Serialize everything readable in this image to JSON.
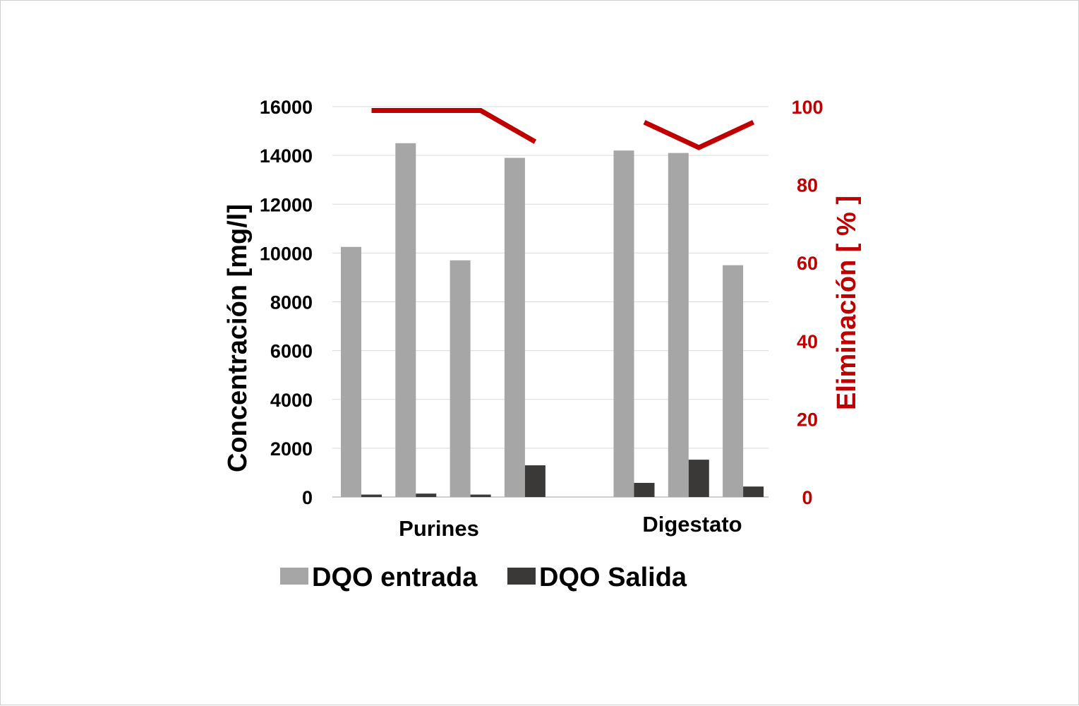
{
  "chart_data": {
    "type": "bar",
    "title": "",
    "groups": [
      "Purines",
      "Digestato"
    ],
    "bars_per_group": 4,
    "series": [
      {
        "name": "DQO entrada",
        "color": "#a6a6a6",
        "axis": "left",
        "values": [
          10250,
          14500,
          9700,
          13900,
          14200,
          14100,
          9500
        ]
      },
      {
        "name": "DQO Salida",
        "color": "#3b3838",
        "axis": "left",
        "values": [
          100,
          140,
          100,
          1300,
          580,
          1530,
          430
        ]
      },
      {
        "name": "Eliminación",
        "type": "line",
        "color": "#c00000",
        "axis": "right",
        "segments": [
          [
            99,
            99,
            99,
            91
          ],
          [
            96,
            89.5,
            96
          ]
        ]
      }
    ],
    "y_left": {
      "label": "Concentración  [mg/l]",
      "ylim": [
        0,
        16000
      ],
      "ticks": [
        "0",
        "2000",
        "4000",
        "6000",
        "8000",
        "10000",
        "12000",
        "14000",
        "16000"
      ]
    },
    "y_right": {
      "label": "Eliminación  [ % ]",
      "ylim": [
        0,
        100
      ],
      "ticks": [
        "0",
        "20",
        "40",
        "60",
        "80",
        "100"
      ],
      "color": "#c00000"
    },
    "grid": true,
    "legend": {
      "position": "bottom",
      "entries": [
        "DQO entrada",
        "DQO Salida"
      ]
    }
  }
}
